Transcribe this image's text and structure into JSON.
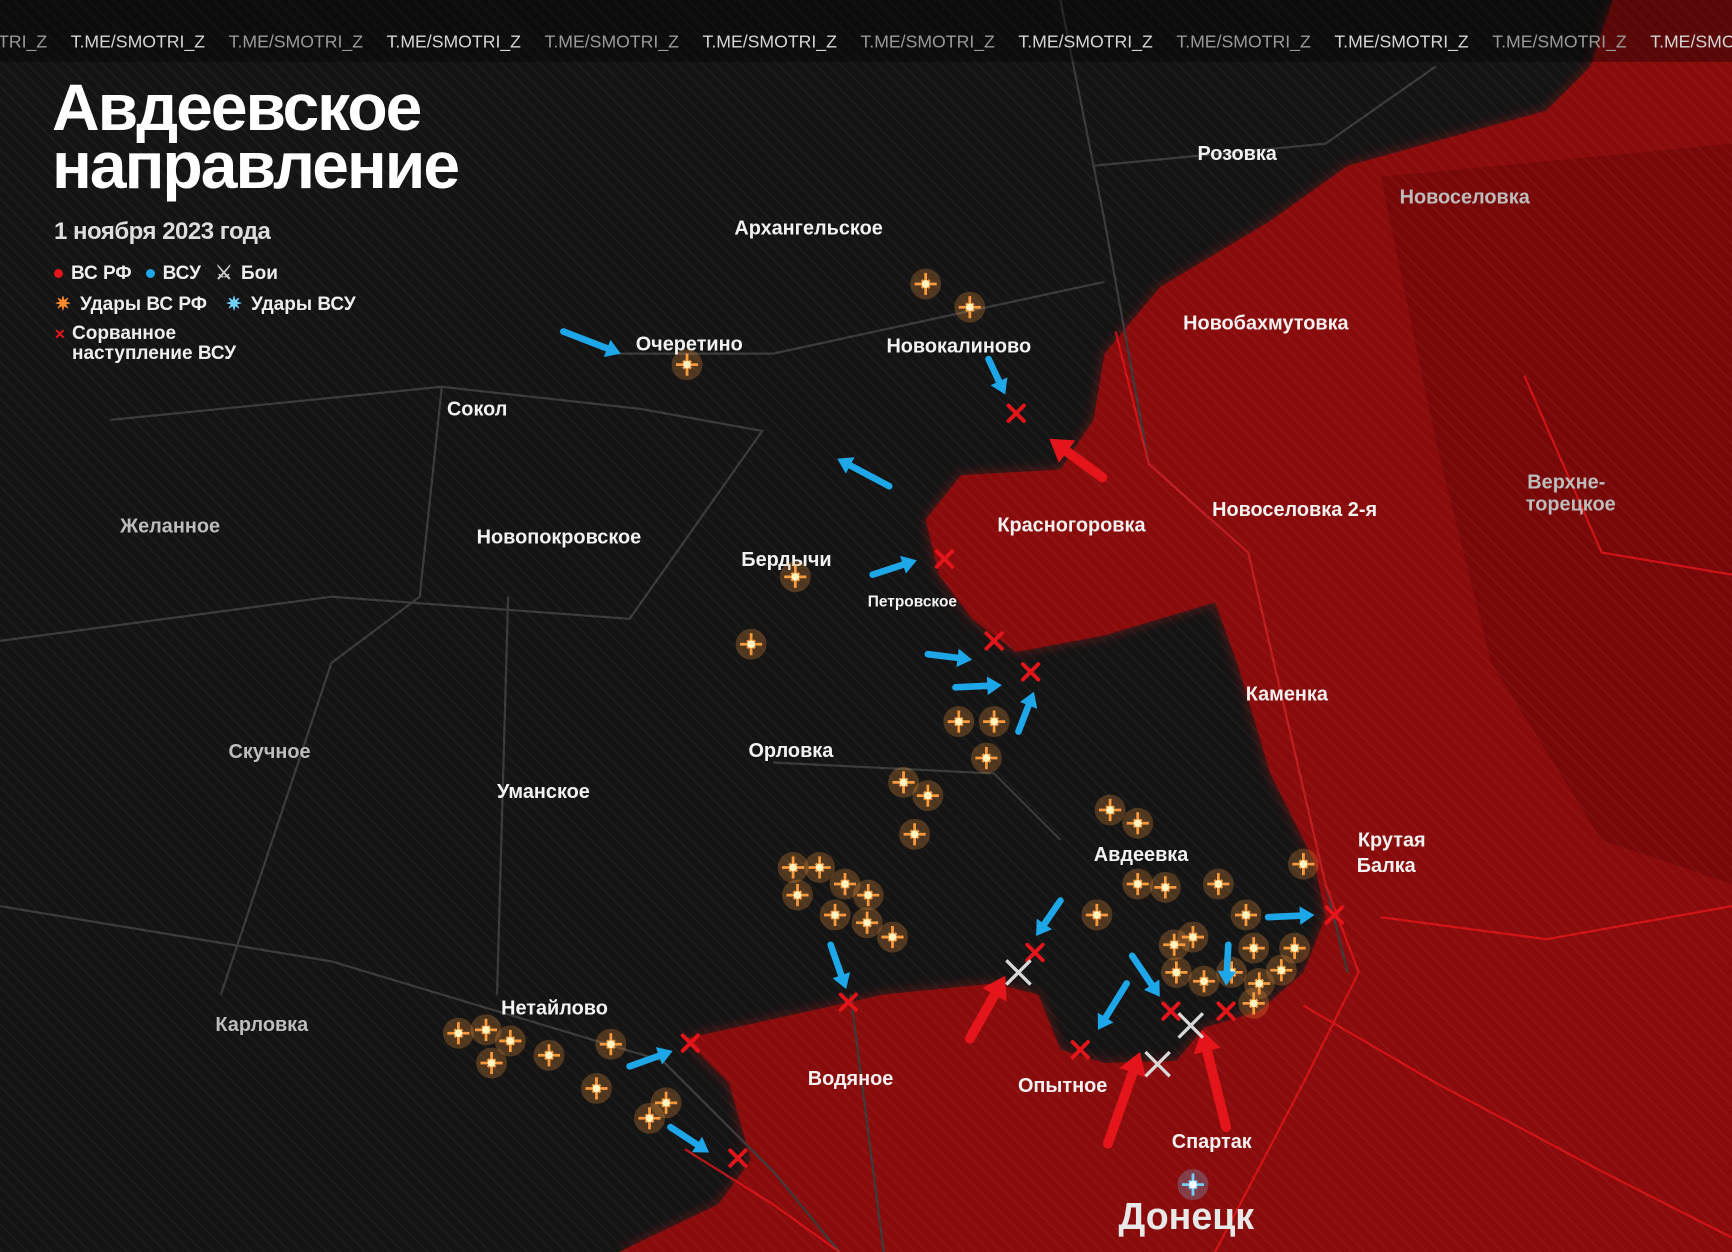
{
  "watermark": "T.ME/SMOTRI_Z",
  "title_line1": "Авдеевское",
  "title_line2": "направление",
  "date": "1 ноября 2023 года",
  "legend": {
    "ru_forces": "ВС РФ",
    "ua_forces": "ВСУ",
    "battles": "Бои",
    "ru_strikes": "Удары ВС РФ",
    "ua_strikes": "Удары ВСУ",
    "failed_line1": "Сорванное",
    "failed_line2": "наступление ВСУ"
  },
  "colors": {
    "ru": "#e3141a",
    "ua": "#1ea7e8",
    "territory_ru": "#8a0b0b",
    "background": "#141414",
    "strike": "#ff9a3c"
  },
  "places": {
    "rozovka": "Розовка",
    "novoselovka": "Новоселовка",
    "arkhangelskoe": "Архангельское",
    "novobakhmutovka": "Новобахмутовка",
    "ocheretino": "Очеретино",
    "novokalinovo": "Новокалиново",
    "sokol": "Сокол",
    "verkhnetoretskoe_1": "Верхне-",
    "verkhnetoretskoe_2": "торецкое",
    "zhelannoe": "Желанное",
    "krasnogorovka": "Красногоровка",
    "novoselovka2": "Новоселовка 2-я",
    "novopokrovskoe": "Новопокровское",
    "berdychi": "Бердычи",
    "petrovskoe": "Петровское",
    "kamenka": "Каменка",
    "skuchnoe": "Скучное",
    "orlovka": "Орловка",
    "umanskoe": "Уманское",
    "krutaya_1": "Крутая",
    "krutaya_2": "Балка",
    "avdeevka": "Авдеевка",
    "karlovka": "Карловка",
    "netaylovo": "Нетайлово",
    "vodyanoe": "Водяное",
    "opytnoe": "Опытное",
    "spartak": "Спартак",
    "donetsk": "Донецк"
  }
}
